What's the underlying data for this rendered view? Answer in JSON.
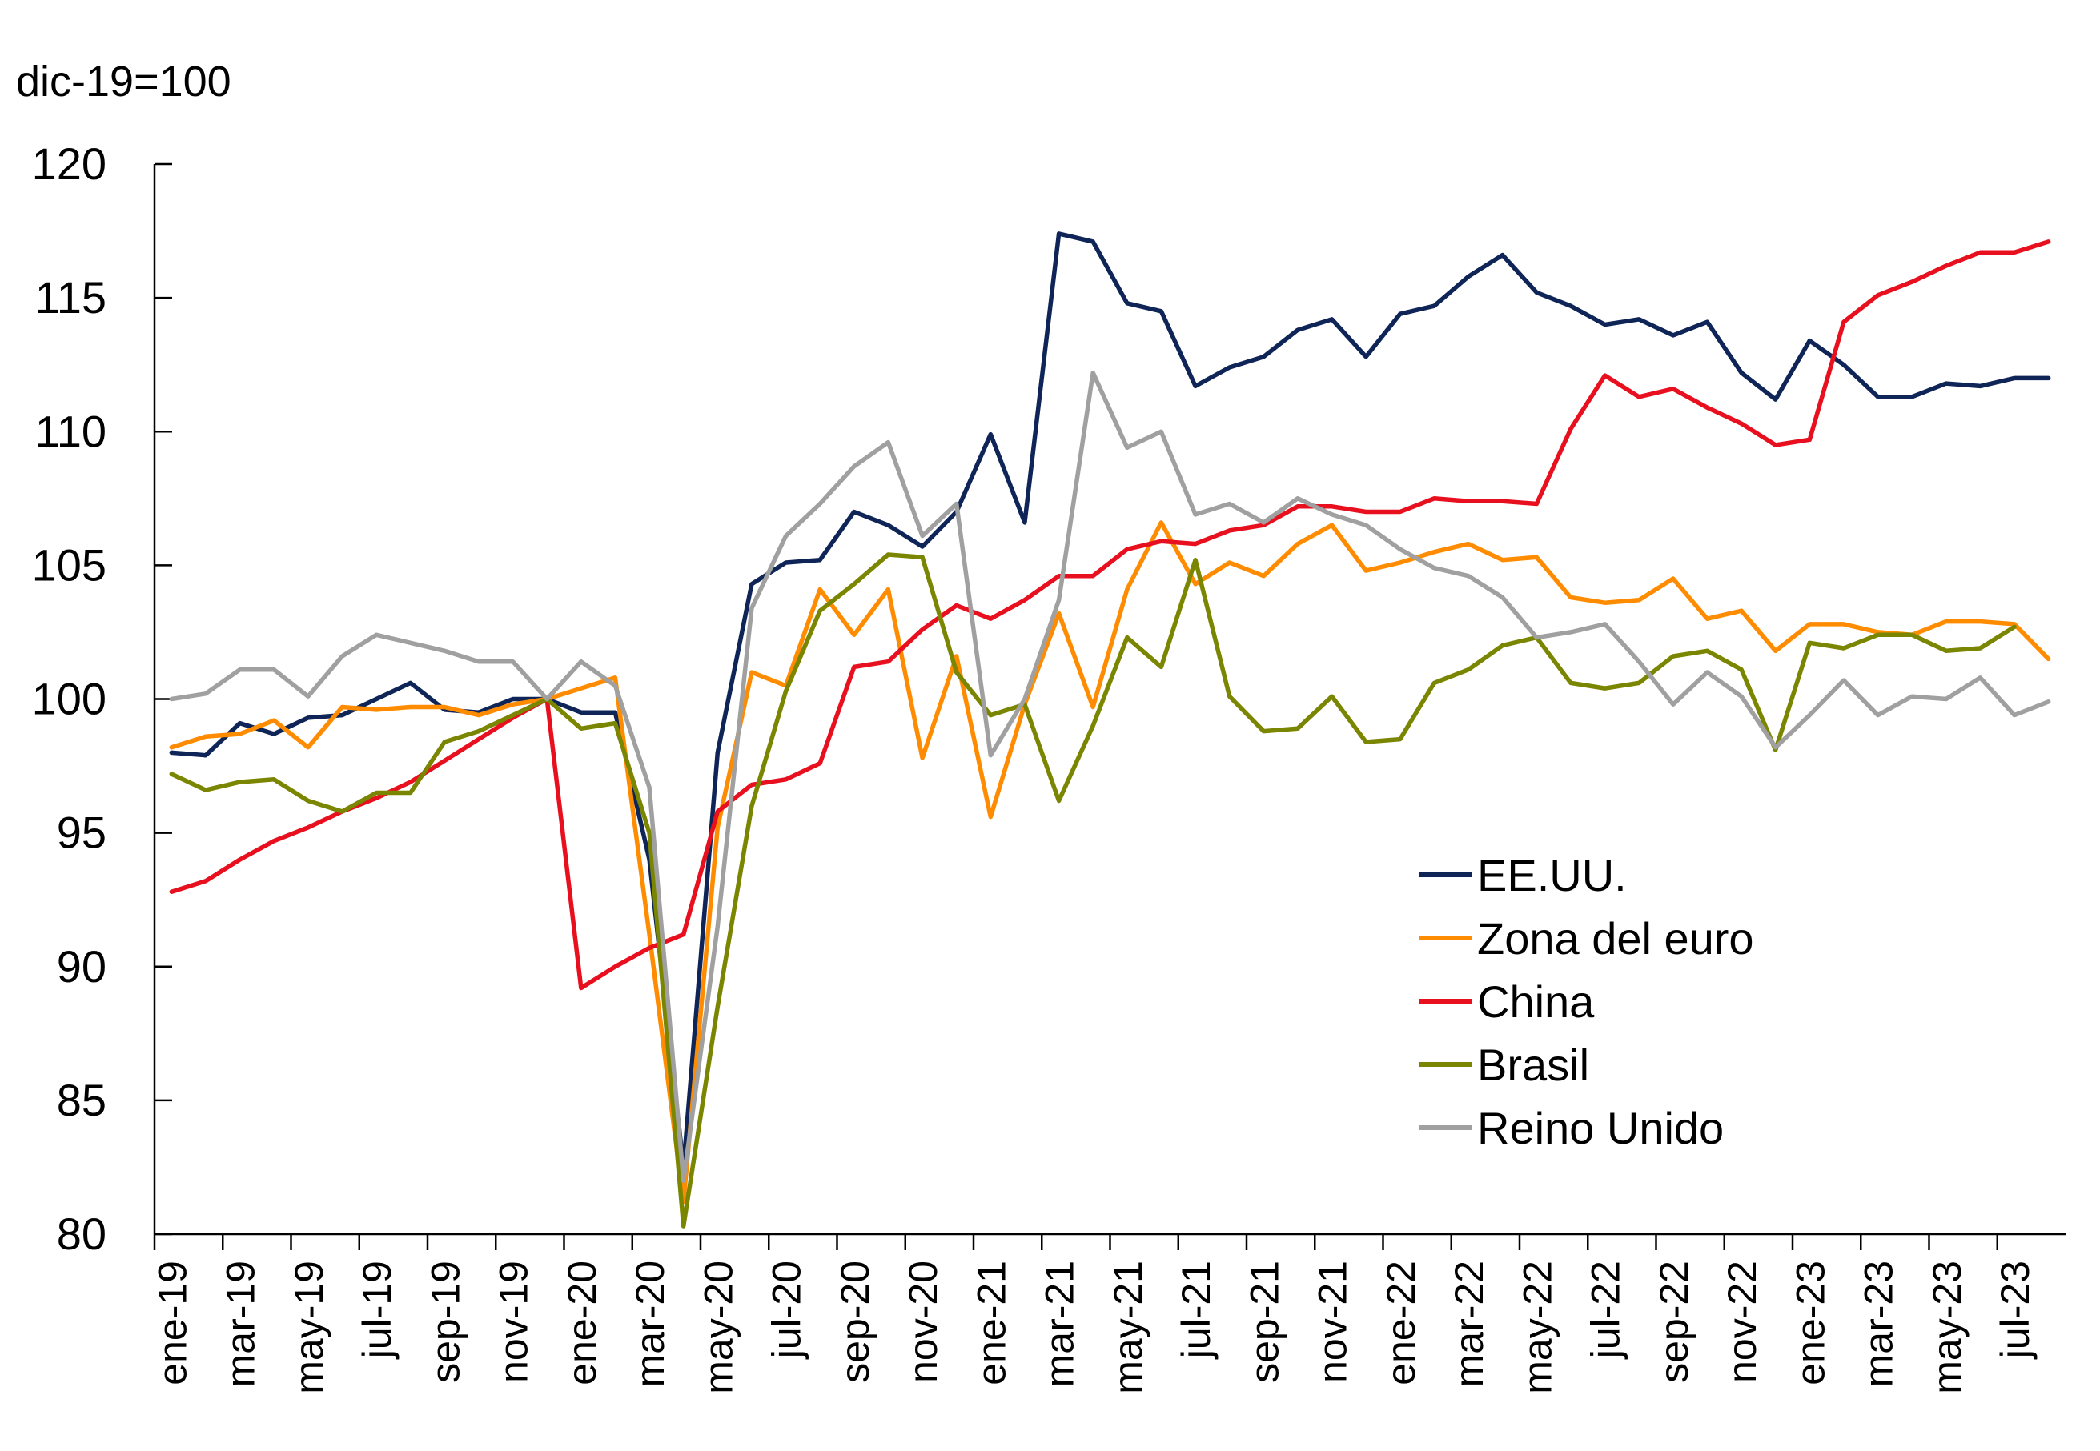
{
  "chart_data": {
    "type": "line",
    "unit_label": "dic-19=100",
    "ylim": [
      80,
      120
    ],
    "yticks": [
      80,
      85,
      90,
      95,
      100,
      105,
      110,
      115,
      120
    ],
    "grid": false,
    "legend_position": "bottom-right",
    "x": [
      "ene-19",
      "feb-19",
      "mar-19",
      "abr-19",
      "may-19",
      "jun-19",
      "jul-19",
      "ago-19",
      "sep-19",
      "oct-19",
      "nov-19",
      "dic-19",
      "ene-20",
      "feb-20",
      "mar-20",
      "abr-20",
      "may-20",
      "jun-20",
      "jul-20",
      "ago-20",
      "sep-20",
      "oct-20",
      "nov-20",
      "dic-20",
      "ene-21",
      "feb-21",
      "mar-21",
      "abr-21",
      "may-21",
      "jun-21",
      "jul-21",
      "ago-21",
      "sep-21",
      "oct-21",
      "nov-21",
      "dic-21",
      "ene-22",
      "feb-22",
      "mar-22",
      "abr-22",
      "may-22",
      "jun-22",
      "jul-22",
      "ago-22",
      "sep-22",
      "oct-22",
      "nov-22",
      "dic-22",
      "ene-23",
      "feb-23",
      "mar-23",
      "abr-23",
      "may-23",
      "jun-23",
      "jul-23",
      "ago-23"
    ],
    "xtick_labels": [
      "ene-19",
      "mar-19",
      "may-19",
      "jul-19",
      "sep-19",
      "nov-19",
      "ene-20",
      "mar-20",
      "may-20",
      "jul-20",
      "sep-20",
      "nov-20",
      "ene-21",
      "mar-21",
      "may-21",
      "jul-21",
      "sep-21",
      "nov-21",
      "ene-22",
      "mar-22",
      "may-22",
      "jul-22",
      "sep-22",
      "nov-22",
      "ene-23",
      "mar-23",
      "may-23",
      "jul-23"
    ],
    "series": [
      {
        "name": "EE.UU.",
        "color": "#0f2557",
        "values": [
          98.0,
          97.9,
          99.1,
          98.7,
          99.3,
          99.4,
          100.0,
          100.6,
          99.6,
          99.5,
          100.0,
          100.0,
          99.5,
          99.5,
          94.0,
          82.5,
          98.0,
          104.3,
          105.1,
          105.2,
          107.0,
          106.5,
          105.7,
          107.0,
          109.9,
          106.6,
          117.4,
          117.1,
          114.8,
          114.5,
          111.7,
          112.4,
          112.8,
          113.8,
          114.2,
          112.8,
          114.4,
          114.7,
          115.8,
          116.6,
          115.2,
          114.7,
          114.0,
          114.2,
          113.6,
          114.1,
          112.2,
          111.2,
          113.4,
          112.5,
          111.3,
          111.3,
          111.8,
          111.7,
          112.0,
          112.0
        ]
      },
      {
        "name": "Zona del euro",
        "color": "#ff8c00",
        "values": [
          98.2,
          98.6,
          98.7,
          99.2,
          98.2,
          99.7,
          99.6,
          99.7,
          99.7,
          99.4,
          99.8,
          100.0,
          100.4,
          100.8,
          91.2,
          81.2,
          95.2,
          101.0,
          100.5,
          104.1,
          102.4,
          104.1,
          97.8,
          101.6,
          95.6,
          99.8,
          103.2,
          99.7,
          104.1,
          106.6,
          104.3,
          105.1,
          104.6,
          105.8,
          106.5,
          104.8,
          105.1,
          105.5,
          105.8,
          105.2,
          105.3,
          103.8,
          103.6,
          103.7,
          104.5,
          103.0,
          103.3,
          101.8,
          102.8,
          102.8,
          102.5,
          102.4,
          102.9,
          102.9,
          102.8,
          101.5
        ]
      },
      {
        "name": "China",
        "color": "#e8101e",
        "values": [
          92.8,
          93.2,
          94.0,
          94.7,
          95.2,
          95.8,
          96.3,
          96.9,
          97.7,
          98.5,
          99.3,
          100.0,
          89.2,
          90.0,
          90.7,
          91.2,
          95.8,
          96.8,
          97.0,
          97.6,
          101.2,
          101.4,
          102.6,
          103.5,
          103.0,
          103.7,
          104.6,
          104.6,
          105.6,
          105.9,
          105.8,
          106.3,
          106.5,
          107.2,
          107.2,
          107.0,
          107.0,
          107.5,
          107.4,
          107.4,
          107.3,
          110.1,
          112.1,
          111.3,
          111.6,
          110.9,
          110.3,
          109.5,
          109.7,
          114.1,
          115.1,
          115.6,
          116.2,
          116.7,
          116.7,
          117.1
        ]
      },
      {
        "name": "Brasil",
        "color": "#7a8500",
        "values": [
          97.2,
          96.6,
          96.9,
          97.0,
          96.2,
          95.8,
          96.5,
          96.5,
          98.4,
          98.8,
          99.4,
          100.0,
          98.9,
          99.1,
          95.0,
          80.3,
          88.5,
          96.0,
          100.3,
          103.3,
          104.3,
          105.4,
          105.3,
          101.0,
          99.4,
          99.8,
          96.2,
          99.0,
          102.3,
          101.2,
          105.2,
          100.1,
          98.8,
          98.9,
          100.1,
          98.4,
          98.5,
          100.6,
          101.1,
          102.0,
          102.3,
          100.6,
          100.4,
          100.6,
          101.6,
          101.8,
          101.1,
          98.1,
          102.1,
          101.9,
          102.4,
          102.4,
          101.8,
          101.9,
          102.7,
          null
        ]
      },
      {
        "name": "Reino Unido",
        "color": "#a0a0a0",
        "values": [
          100.0,
          100.2,
          101.1,
          101.1,
          100.1,
          101.6,
          102.4,
          102.1,
          101.8,
          101.4,
          101.4,
          100.0,
          101.4,
          100.5,
          96.7,
          82.0,
          91.5,
          103.4,
          106.1,
          107.3,
          108.7,
          109.6,
          106.1,
          107.3,
          97.9,
          100.0,
          103.7,
          112.2,
          109.4,
          110.0,
          106.9,
          107.3,
          106.6,
          107.5,
          106.9,
          106.5,
          105.6,
          104.9,
          104.6,
          103.8,
          102.3,
          102.5,
          102.8,
          101.4,
          99.8,
          101.0,
          100.1,
          98.2,
          99.4,
          100.7,
          99.4,
          100.1,
          100.0,
          100.8,
          99.4,
          99.9
        ]
      }
    ]
  }
}
